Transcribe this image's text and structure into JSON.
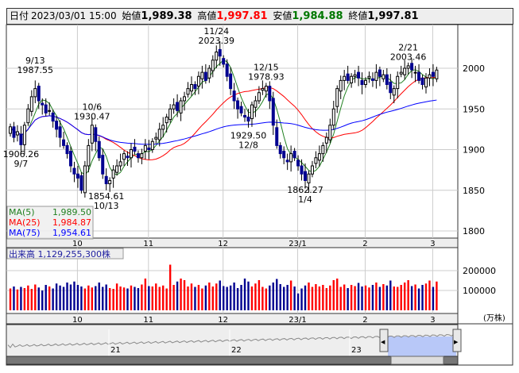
{
  "header": {
    "date_label": "日付",
    "date": "2023/03/01 15:00",
    "open_label": "始値",
    "open": "1,989.38",
    "high_label": "高値",
    "high": "1,997.81",
    "low_label": "安値",
    "low": "1,984.88",
    "close_label": "終値",
    "close": "1,997.81",
    "colors": {
      "high": "#ff0000",
      "low": "#007000"
    }
  },
  "legend": {
    "ma5_label": "MA(5)",
    "ma5": "1,989.50",
    "ma25_label": "MA(25)",
    "ma25": "1,984.87",
    "ma75_label": "MA(75)",
    "ma75": "1,954.61",
    "colors": {
      "ma5": "#208020",
      "ma25": "#ff0000",
      "ma75": "#0000ff"
    }
  },
  "volume_panel": {
    "label": "出来高",
    "value": "1,129,255,300株",
    "unit": "(万株)",
    "ticks": [
      "200000",
      "100000"
    ]
  },
  "navigator": {
    "years": [
      "21",
      "22",
      "23"
    ]
  },
  "chart_data": {
    "type": "candlestick",
    "price_ticks": [
      "2000",
      "1950",
      "1900",
      "1850",
      "1800"
    ],
    "ylim": [
      1795,
      2050
    ],
    "x_ticks": [
      {
        "label": "10",
        "index": 20
      },
      {
        "label": "11",
        "index": 40
      },
      {
        "label": "12",
        "index": 61
      },
      {
        "label": "23/1",
        "index": 82
      },
      {
        "label": "2",
        "index": 101
      },
      {
        "label": "3",
        "index": 120
      }
    ],
    "closes": [
      1928,
      1915,
      1922,
      1906,
      1930,
      1950,
      1965,
      1975,
      1960,
      1955,
      1945,
      1948,
      1935,
      1925,
      1915,
      1905,
      1895,
      1880,
      1870,
      1865,
      1850,
      1880,
      1905,
      1930,
      1910,
      1890,
      1870,
      1858,
      1862,
      1875,
      1880,
      1885,
      1895,
      1890,
      1900,
      1898,
      1890,
      1895,
      1905,
      1900,
      1910,
      1915,
      1925,
      1930,
      1940,
      1950,
      1955,
      1948,
      1960,
      1965,
      1975,
      1980,
      1975,
      1990,
      1995,
      1985,
      2000,
      2010,
      2020,
      2015,
      2005,
      1990,
      1975,
      1960,
      1950,
      1945,
      1940,
      1935,
      1955,
      1960,
      1970,
      1975,
      1978,
      1960,
      1930,
      1905,
      1895,
      1890,
      1885,
      1895,
      1890,
      1880,
      1870,
      1862,
      1870,
      1880,
      1890,
      1895,
      1905,
      1915,
      1930,
      1950,
      1975,
      1985,
      1990,
      1985,
      1990,
      1992,
      1988,
      1980,
      1985,
      1990,
      1985,
      1995,
      1990,
      1992,
      1980,
      1970,
      1975,
      1990,
      1995,
      2000,
      2003,
      1998,
      1995,
      1985,
      1980,
      1988,
      1992,
      1990,
      1997.81
    ],
    "volumes": [
      110000,
      120000,
      105000,
      118000,
      112000,
      125000,
      108000,
      130000,
      115000,
      100000,
      128000,
      120000,
      110000,
      135000,
      125000,
      118000,
      140000,
      130000,
      145000,
      128000,
      120000,
      110000,
      125000,
      115000,
      122000,
      140000,
      118000,
      130000,
      112000,
      108000,
      135000,
      120000,
      115000,
      110000,
      125000,
      118000,
      112000,
      130000,
      160000,
      122000,
      120000,
      135000,
      118000,
      125000,
      110000,
      230000,
      128000,
      145000,
      160000,
      152000,
      120000,
      135000,
      118000,
      128000,
      110000,
      125000,
      140000,
      120000,
      135000,
      150000,
      122000,
      118000,
      125000,
      140000,
      112000,
      128000,
      160000,
      145000,
      120000,
      135000,
      152000,
      118000,
      110000,
      125000,
      140000,
      158000,
      132000,
      118000,
      128000,
      150000,
      120000,
      85000,
      110000,
      125000,
      140000,
      118000,
      132000,
      120000,
      128000,
      112000,
      125000,
      152000,
      160000,
      118000,
      130000,
      112000,
      128000,
      122000,
      138000,
      120000,
      125000,
      115000,
      128000,
      140000,
      118000,
      132000,
      125000,
      150000,
      120000,
      118000,
      128000,
      140000,
      152000,
      122000,
      130000,
      110000,
      128000,
      135000,
      150000,
      118000,
      145000
    ],
    "vol_ylim": [
      0,
      240000
    ],
    "annotations": [
      {
        "date": "9/13",
        "price": "1987.55",
        "index": 7,
        "value": 1987.55,
        "pos": "above"
      },
      {
        "date": "9/7",
        "price": "1906.26",
        "index": 3,
        "value": 1906.26,
        "pos": "below"
      },
      {
        "date": "10/6",
        "price": "1930.47",
        "index": 23,
        "value": 1930.47,
        "pos": "above"
      },
      {
        "date": "10/13",
        "price": "1854.61",
        "index": 27,
        "value": 1854.61,
        "pos": "below"
      },
      {
        "date": "11/24",
        "price": "2023.39",
        "index": 58,
        "value": 2023.39,
        "pos": "above"
      },
      {
        "date": "12/8",
        "price": "1929.50",
        "index": 67,
        "value": 1929.5,
        "pos": "below"
      },
      {
        "date": "12/15",
        "price": "1978.93",
        "index": 72,
        "value": 1978.93,
        "pos": "above"
      },
      {
        "date": "1/4",
        "price": "1862.27",
        "index": 83,
        "value": 1862.27,
        "pos": "below"
      },
      {
        "date": "2/21",
        "price": "2003.46",
        "index": 112,
        "value": 2003.46,
        "pos": "above"
      }
    ],
    "colors": {
      "up": "#ff0000",
      "down": "#000090",
      "candle_up": "#ffffff",
      "candle_down": "#000090"
    }
  }
}
